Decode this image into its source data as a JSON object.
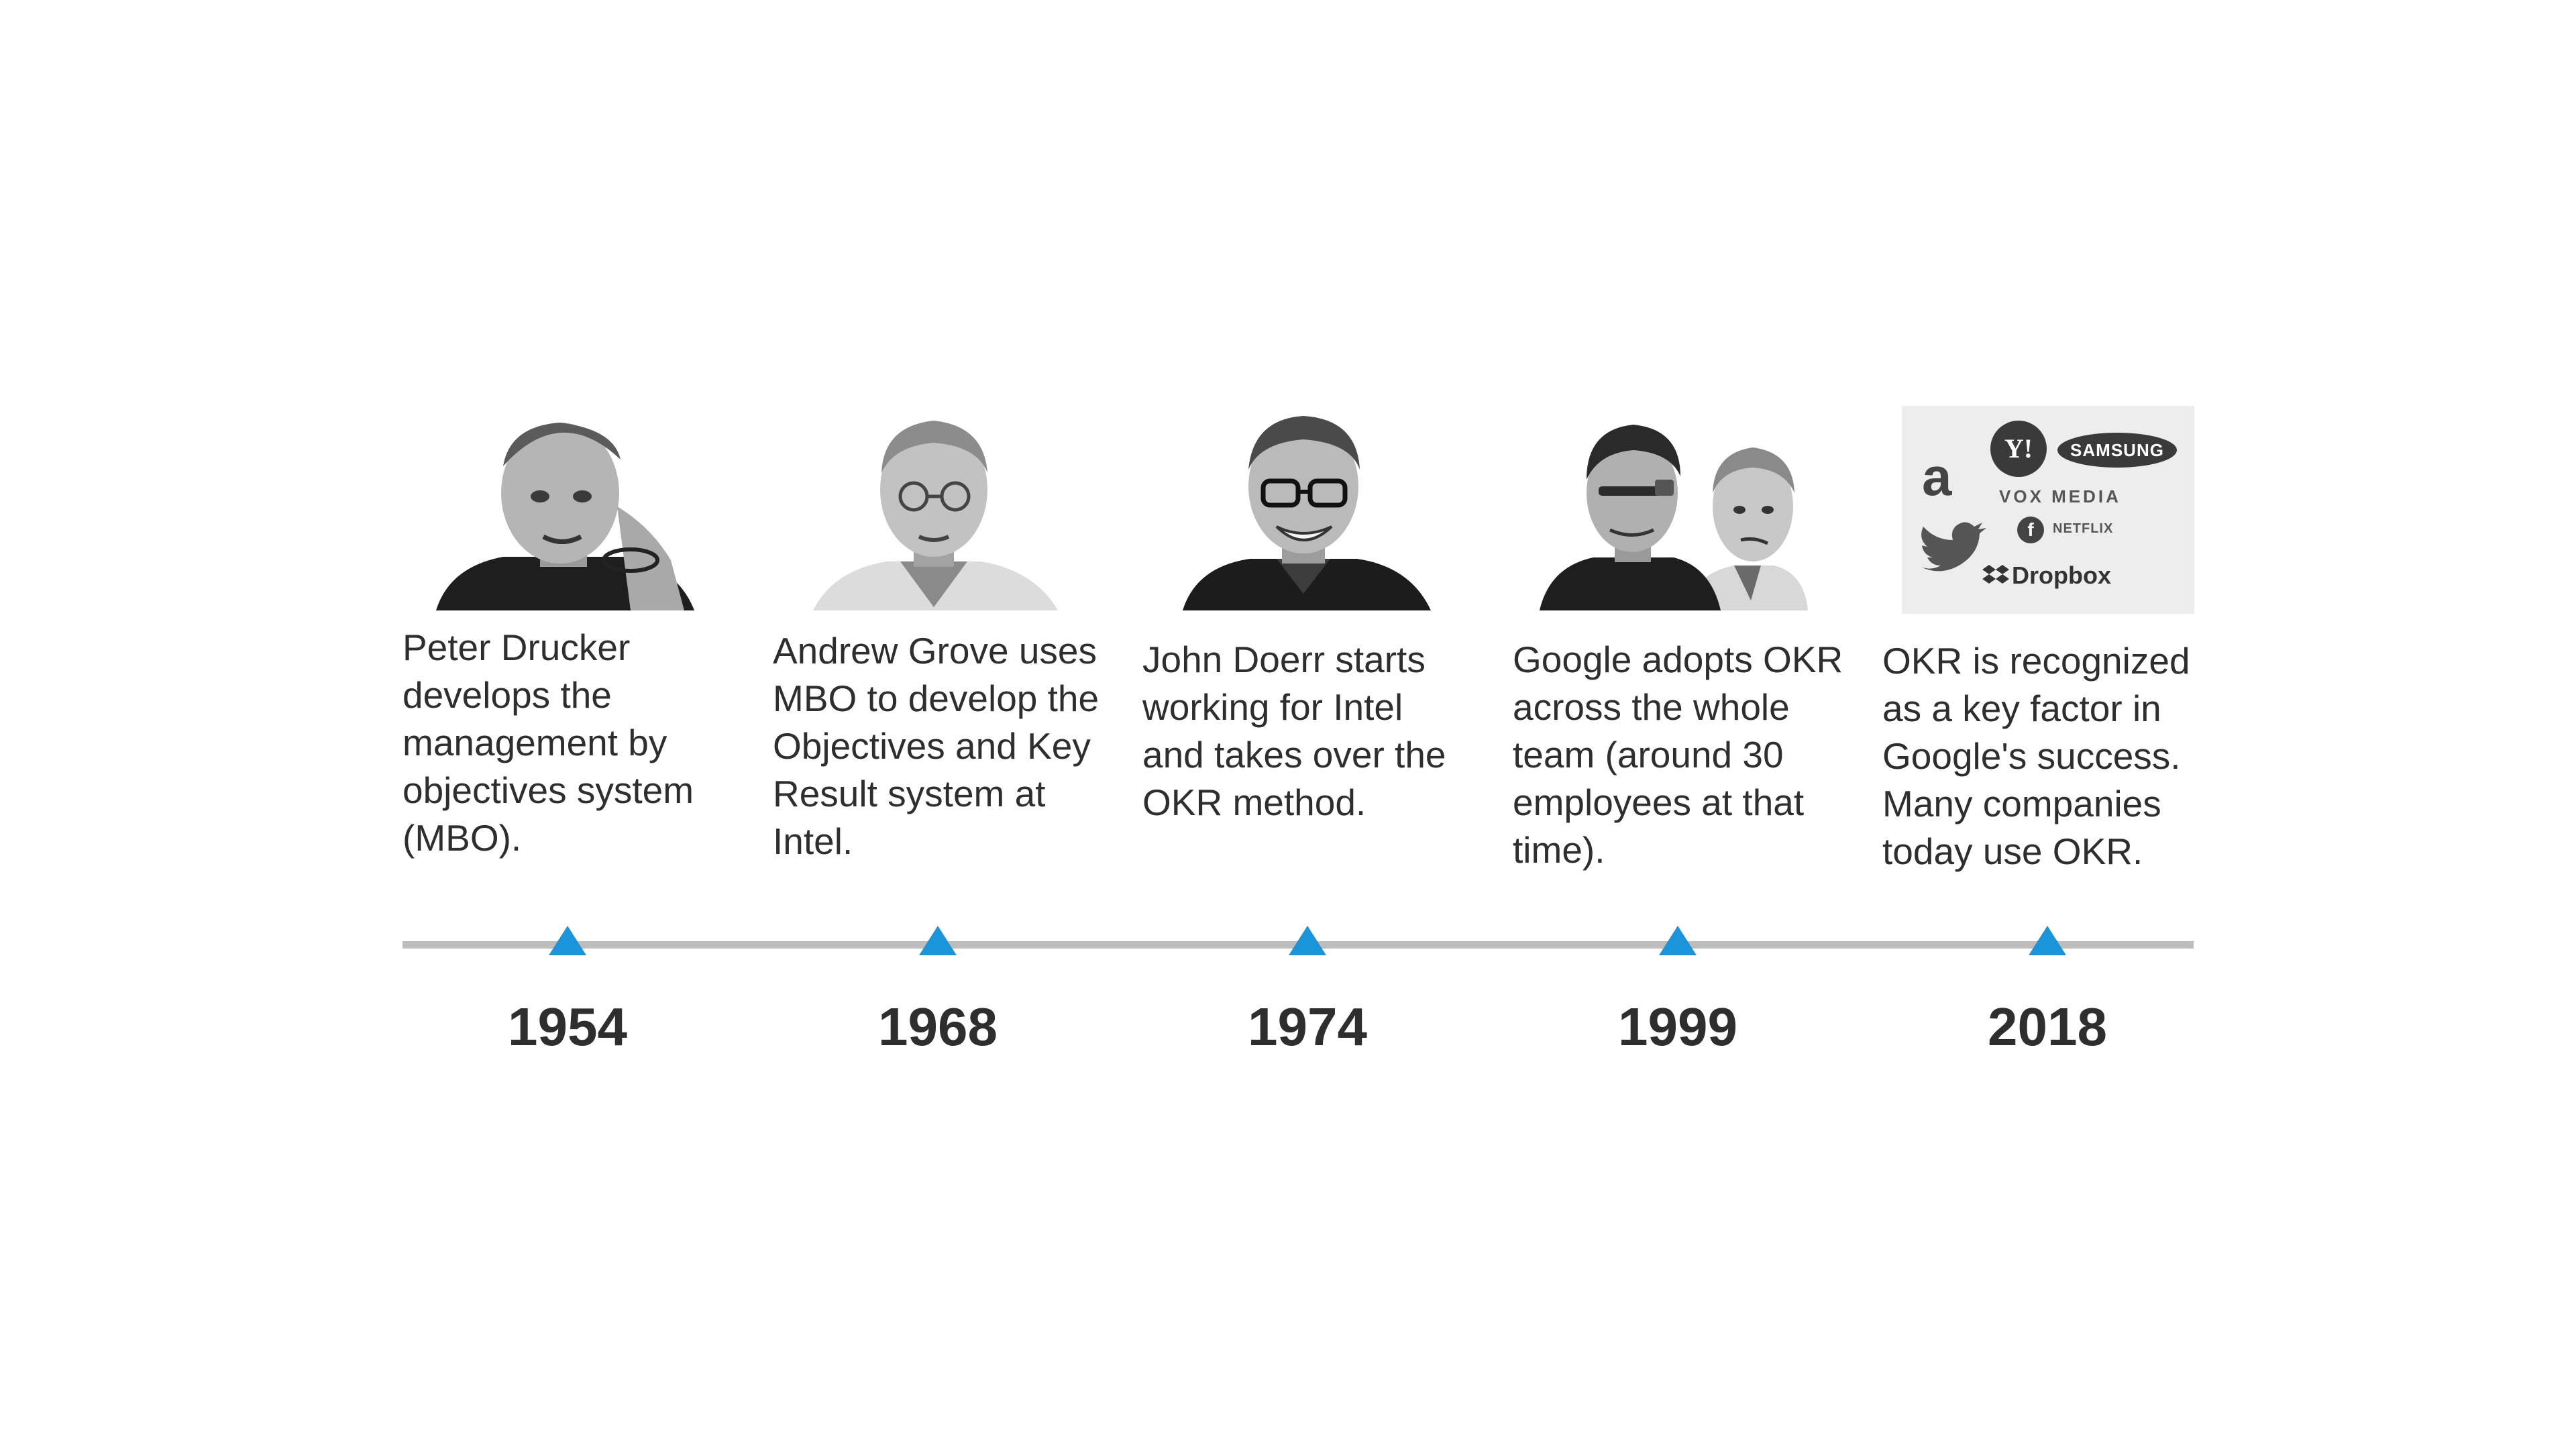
{
  "timeline": {
    "accent_color": "#1a95dc",
    "line_color": "#bdbdbd",
    "events": [
      {
        "year": "1954",
        "caption": [
          "Peter Drucker",
          "develops the",
          "management by",
          "objectives system",
          "(MBO)."
        ]
      },
      {
        "year": "1968",
        "caption": [
          "Andrew Grove uses",
          "MBO to develop the",
          "Objectives and Key",
          "Result system at",
          "Intel."
        ]
      },
      {
        "year": "1974",
        "caption": [
          "John Doerr starts",
          "working for Intel",
          "and takes over the",
          "OKR method."
        ]
      },
      {
        "year": "1999",
        "caption": [
          "Google adopts OKR",
          "across the whole",
          "team (around 30",
          "employees at that",
          "time)."
        ]
      },
      {
        "year": "2018",
        "caption": [
          "OKR is recognized",
          "as a key factor in",
          "Google's success.",
          "Many companies",
          "today use OKR."
        ]
      }
    ]
  },
  "logos": {
    "amazon": "a",
    "yahoo": "Y!",
    "samsung": "SAMSUNG",
    "vox_media": "VOX MEDIA",
    "facebook": "f",
    "netflix": "NETFLIX",
    "dropbox": "Dropbox"
  }
}
